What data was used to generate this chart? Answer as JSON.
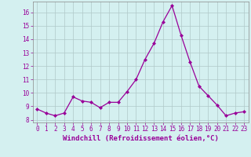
{
  "x": [
    0,
    1,
    2,
    3,
    4,
    5,
    6,
    7,
    8,
    9,
    10,
    11,
    12,
    13,
    14,
    15,
    16,
    17,
    18,
    19,
    20,
    21,
    22,
    23
  ],
  "y": [
    8.8,
    8.5,
    8.3,
    8.5,
    9.7,
    9.4,
    9.3,
    8.9,
    9.3,
    9.3,
    10.1,
    11.0,
    12.5,
    13.7,
    15.3,
    16.5,
    14.3,
    12.3,
    10.5,
    9.8,
    9.1,
    8.3,
    8.5,
    8.6
  ],
  "line_color": "#990099",
  "marker": "D",
  "markersize": 2.0,
  "linewidth": 0.9,
  "bg_color": "#d4f0f0",
  "grid_color": "#b0c8c8",
  "xlabel": "Windchill (Refroidissement éolien,°C)",
  "xlabel_color": "#990099",
  "tick_color": "#990099",
  "ylim": [
    7.8,
    16.8
  ],
  "xlim": [
    -0.5,
    23.5
  ],
  "yticks": [
    8,
    9,
    10,
    11,
    12,
    13,
    14,
    15,
    16
  ],
  "xticks": [
    0,
    1,
    2,
    3,
    4,
    5,
    6,
    7,
    8,
    9,
    10,
    11,
    12,
    13,
    14,
    15,
    16,
    17,
    18,
    19,
    20,
    21,
    22,
    23
  ],
  "tick_fontsize": 5.5,
  "xlabel_fontsize": 6.5
}
